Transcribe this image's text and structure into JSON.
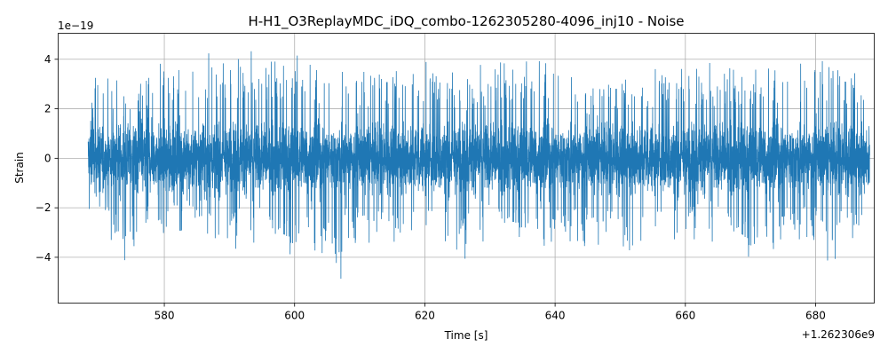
{
  "chart_data": {
    "type": "line",
    "title": "H-H1_O3ReplayMDC_iDQ_combo-1262305280-4096_inj10 - Noise",
    "xlabel": "Time [s]",
    "ylabel": "Strain",
    "x_offset_label": "+1.262306e9",
    "y_scale_label": "1e−19",
    "xlim": [
      563.7,
      689.0
    ],
    "ylim": [
      -5.85,
      5.05
    ],
    "x_ticks": [
      580,
      600,
      620,
      640,
      660,
      680
    ],
    "x_tick_labels": [
      "580",
      "600",
      "620",
      "640",
      "660",
      "680"
    ],
    "y_ticks": [
      -4,
      -2,
      0,
      2,
      4
    ],
    "y_tick_labels": [
      "−4",
      "−2",
      "0",
      "2",
      "4"
    ],
    "grid": true,
    "legend": "none",
    "series": [
      {
        "color": "#1f77b4",
        "x_range": [
          568.3,
          688.3
        ],
        "amplitude_envelope": {
          "x": [
            568.3,
            570,
            574,
            578,
            580,
            583,
            584,
            590,
            592,
            594,
            596,
            600,
            602,
            607,
            608,
            612,
            620,
            624,
            625,
            628,
            630,
            636,
            640,
            642,
            646,
            650,
            652,
            654,
            656,
            658,
            662,
            666,
            670,
            674,
            676,
            680,
            683,
            684,
            686,
            688.3
          ],
          "upper": [
            3.7,
            3.5,
            3.0,
            3.8,
            4.1,
            3.9,
            4.3,
            4.2,
            4.4,
            4.3,
            4.0,
            4.3,
            4.0,
            3.6,
            3.8,
            3.7,
            3.9,
            4.0,
            3.2,
            3.7,
            4.0,
            4.0,
            4.3,
            3.5,
            3.0,
            3.5,
            3.3,
            3.2,
            3.8,
            4.0,
            3.9,
            3.8,
            3.6,
            3.9,
            3.8,
            4.3,
            4.0,
            3.8,
            3.7,
            2.7
          ],
          "lower": [
            -3.3,
            -3.0,
            -4.2,
            -3.2,
            -3.4,
            -3.0,
            -3.0,
            -4.0,
            -3.5,
            -3.5,
            -3.9,
            -4.2,
            -3.4,
            -5.3,
            -3.4,
            -3.5,
            -3.6,
            -3.8,
            -4.6,
            -3.5,
            -3.4,
            -3.4,
            -3.8,
            -3.5,
            -3.6,
            -3.4,
            -4.8,
            -3.6,
            -3.7,
            -3.7,
            -3.3,
            -3.6,
            -4.3,
            -3.7,
            -3.5,
            -3.3,
            -4.8,
            -3.3,
            -3.4,
            -2.7
          ]
        }
      }
    ]
  }
}
